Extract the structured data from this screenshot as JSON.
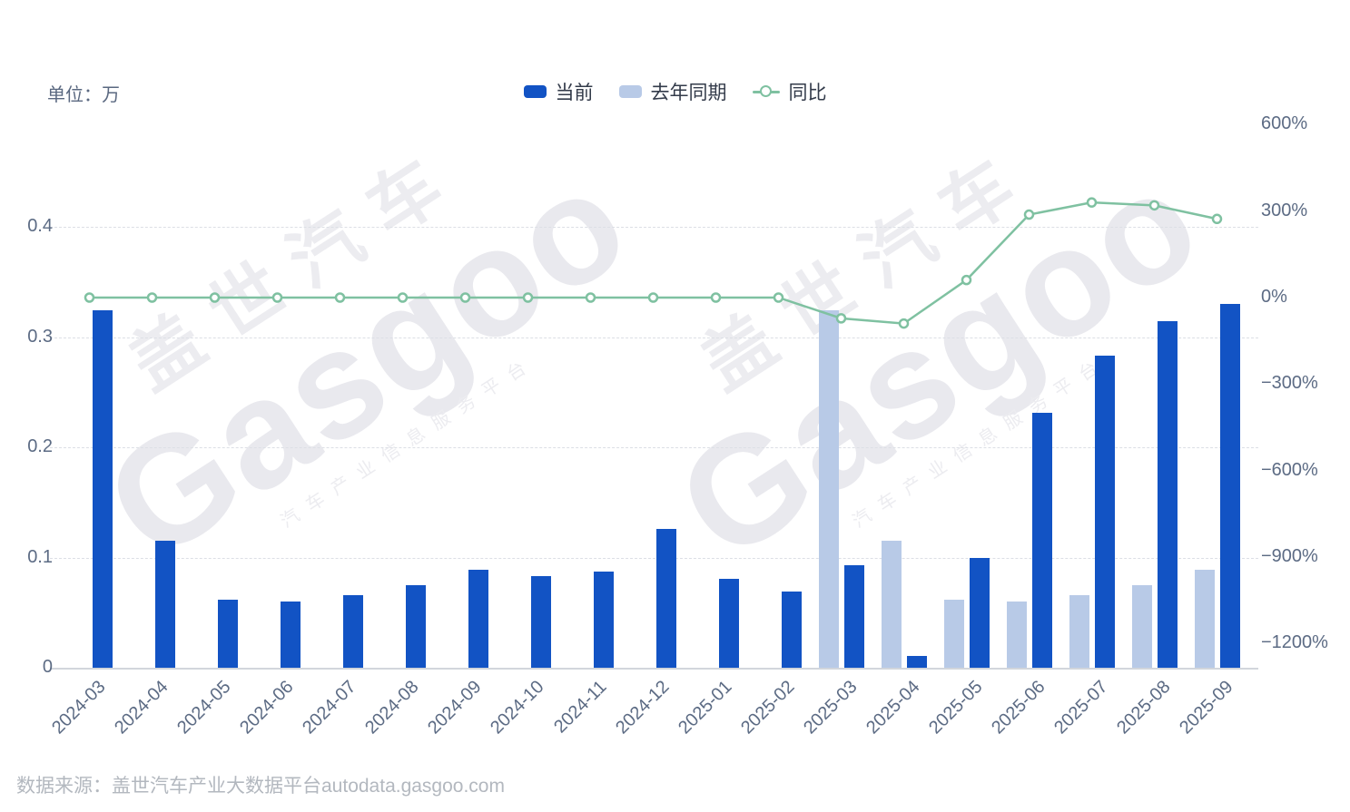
{
  "header": {
    "unit_label": "单位：万"
  },
  "legend": {
    "current": "当前",
    "last_year": "去年同期",
    "yoy": "同比"
  },
  "footer": {
    "source": "数据来源：盖世汽车产业大数据平台autodata.gasgoo.com"
  },
  "watermark": {
    "brand_cn": "盖世汽车",
    "brand_en": "Gasgoo",
    "tagline": "汽车产业信息服务平台"
  },
  "colors": {
    "current": "#1253c4",
    "last_year": "#b8cae7",
    "yoy_line": "#7fc1a1",
    "axis_text": "#5c6b84",
    "grid": "#dcdfe5",
    "axis_line": "#d2d6dc",
    "legend_text": "#333b4a",
    "source_text": "#b3b8bf"
  },
  "chart_data": {
    "type": "bar",
    "subtype": "grouped bars + line on secondary axis",
    "title": "",
    "xlabel": "",
    "ylabel_left": "单位：万",
    "ylabel_right": "同比 %",
    "legend_position": "top-center",
    "grid": "horizontal dashed gridlines for left axis",
    "categories": [
      "2024-03",
      "2024-04",
      "2024-05",
      "2024-06",
      "2024-07",
      "2024-08",
      "2024-09",
      "2024-10",
      "2024-11",
      "2024-12",
      "2025-01",
      "2025-02",
      "2025-03",
      "2025-04",
      "2025-05",
      "2025-06",
      "2025-07",
      "2025-08",
      "2025-09"
    ],
    "series": [
      {
        "name": "当前",
        "type": "bar",
        "axis": "left",
        "values": [
          0.324,
          0.115,
          0.062,
          0.06,
          0.066,
          0.075,
          0.089,
          0.083,
          0.087,
          0.126,
          0.081,
          0.069,
          0.093,
          0.011,
          0.1,
          0.231,
          0.283,
          0.314,
          0.33
        ]
      },
      {
        "name": "去年同期",
        "type": "bar",
        "axis": "left",
        "values": [
          0,
          0,
          0,
          0,
          0,
          0,
          0,
          0,
          0,
          0,
          0,
          0,
          0.324,
          0.115,
          0.062,
          0.06,
          0.066,
          0.075,
          0.089
        ]
      },
      {
        "name": "同比",
        "type": "line",
        "axis": "right",
        "unit": "%",
        "values": [
          0,
          0,
          0,
          0,
          0,
          0,
          0,
          0,
          0,
          0,
          0,
          0,
          -72,
          -90,
          61,
          288,
          330,
          320,
          273
        ]
      }
    ],
    "left_axis": {
      "ticks": [
        0,
        0.1,
        0.2,
        0.3,
        0.4
      ],
      "labels": [
        "0",
        "0.1",
        "0.2",
        "0.3",
        "0.4"
      ],
      "range": [
        0,
        0.4
      ]
    },
    "right_axis": {
      "ticks": [
        600,
        300,
        0,
        -300,
        -600,
        -900,
        -1200
      ],
      "labels": [
        "600%",
        "300%",
        "0%",
        "−300%",
        "−600%",
        "−900%",
        "−1200%"
      ],
      "range": [
        -1200,
        600
      ]
    }
  }
}
